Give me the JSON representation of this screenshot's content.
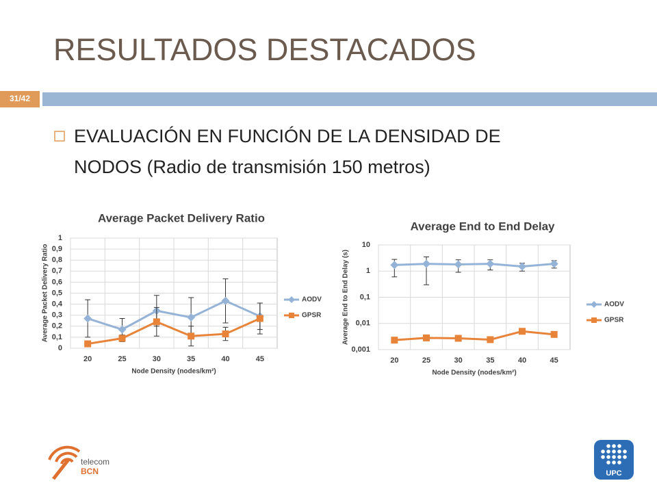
{
  "slide": {
    "title": "RESULTADOS DESTACADOS",
    "page_number": "31/42",
    "bullet_line1": "EVALUACIÓN EN FUNCIÓN DE LA DENSIDAD DE",
    "bullet_line2": "NODOS (Radio de transmisión 150 metros)",
    "logo_left_top": "telecom",
    "logo_left_bottom": "BCN",
    "logo_right": "UPC"
  },
  "chart_data": [
    {
      "type": "line",
      "title": "Average Packet Delivery Ratio",
      "x_label": "Node Density (nodes/km²)",
      "y_label": "Average Packet Delivery Ratio",
      "categories": [
        "20",
        "25",
        "30",
        "35",
        "40",
        "45"
      ],
      "series": [
        {
          "name": "AODV",
          "color": "#95b3d7",
          "marker": "diamond",
          "values": [
            0.27,
            0.17,
            0.34,
            0.28,
            0.43,
            0.29
          ],
          "errors": [
            0.17,
            0.1,
            0.14,
            0.18,
            0.2,
            0.12
          ]
        },
        {
          "name": "GPSR",
          "color": "#e8833a",
          "marker": "square",
          "values": [
            0.04,
            0.09,
            0.24,
            0.11,
            0.13,
            0.27
          ],
          "errors": [
            0.01,
            0.03,
            0.13,
            0.09,
            0.06,
            0.14
          ]
        }
      ],
      "ylim": [
        0,
        1
      ],
      "yticks": [
        0,
        {
          "value": 0.1,
          "label": "0,1"
        },
        {
          "value": 0.2,
          "label": "0,2"
        },
        {
          "value": 0.3,
          "label": "0,3"
        },
        {
          "value": 0.4,
          "label": "0,4"
        },
        {
          "value": 0.5,
          "label": "0,5"
        },
        {
          "value": 0.6,
          "label": "0,6"
        },
        {
          "value": 0.7,
          "label": "0,7"
        },
        {
          "value": 0.8,
          "label": "0,8"
        },
        {
          "value": 0.9,
          "label": "0,9"
        },
        1
      ],
      "log_y": false,
      "grid": true,
      "legend": "right"
    },
    {
      "type": "line",
      "title": "Average End to End Delay",
      "x_label": "Node Density (nodes/km²)",
      "y_label": "Average End to End Delay (s)",
      "categories": [
        "20",
        "25",
        "30",
        "35",
        "40",
        "45"
      ],
      "series": [
        {
          "name": "AODV",
          "color": "#95b3d7",
          "marker": "diamond",
          "values": [
            1.7,
            1.9,
            1.8,
            1.9,
            1.5,
            1.9
          ],
          "errors": [
            1.1,
            1.6,
            0.9,
            0.8,
            0.5,
            0.6
          ]
        },
        {
          "name": "GPSR",
          "color": "#e8833a",
          "marker": "square",
          "values": [
            0.0023,
            0.0028,
            0.0027,
            0.0024,
            0.005,
            0.0038
          ],
          "errors": [
            0.0002,
            0.0003,
            0.0003,
            0.0002,
            0.001,
            0.0008
          ]
        }
      ],
      "ylim": [
        0.001,
        10
      ],
      "yticks": [
        {
          "value": 0.001,
          "label": "0,001"
        },
        {
          "value": 0.01,
          "label": "0,01"
        },
        {
          "value": 0.1,
          "label": "0,1"
        },
        1,
        10
      ],
      "log_y": true,
      "grid": true,
      "legend": "right"
    }
  ]
}
